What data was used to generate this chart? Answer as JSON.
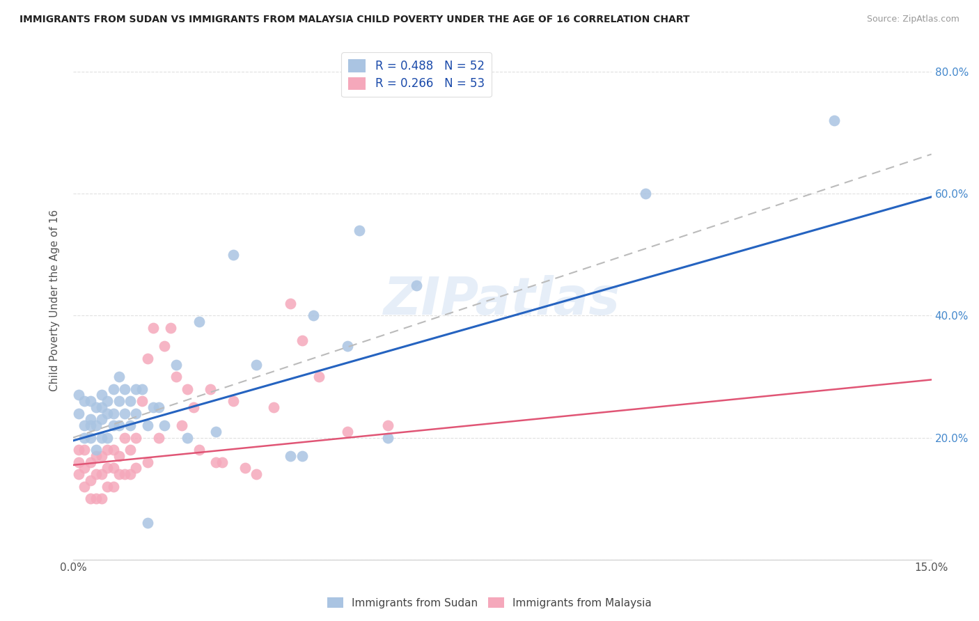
{
  "title": "IMMIGRANTS FROM SUDAN VS IMMIGRANTS FROM MALAYSIA CHILD POVERTY UNDER THE AGE OF 16 CORRELATION CHART",
  "source": "Source: ZipAtlas.com",
  "ylabel": "Child Poverty Under the Age of 16",
  "xlim": [
    0,
    0.15
  ],
  "ylim": [
    0,
    0.85
  ],
  "sudan_R": 0.488,
  "sudan_N": 52,
  "malaysia_R": 0.266,
  "malaysia_N": 53,
  "sudan_color": "#aac4e2",
  "malaysia_color": "#f5a8bb",
  "sudan_line_color": "#2563c0",
  "malaysia_line_color": "#e05575",
  "dashed_line_color": "#bbbbbb",
  "watermark": "ZIPatlas",
  "legend_sudan_label": "R = 0.488   N = 52",
  "legend_malaysia_label": "R = 0.266   N = 53",
  "sudan_line_x0": 0.0,
  "sudan_line_y0": 0.195,
  "sudan_line_x1": 0.15,
  "sudan_line_y1": 0.595,
  "malaysia_line_x0": 0.0,
  "malaysia_line_y0": 0.155,
  "malaysia_line_x1": 0.15,
  "malaysia_line_y1": 0.295,
  "dashed_line_x0": 0.0,
  "dashed_line_y0": 0.2,
  "dashed_line_x1": 0.15,
  "dashed_line_y1": 0.665,
  "sudan_x": [
    0.001,
    0.001,
    0.002,
    0.002,
    0.002,
    0.003,
    0.003,
    0.003,
    0.003,
    0.004,
    0.004,
    0.004,
    0.005,
    0.005,
    0.005,
    0.005,
    0.006,
    0.006,
    0.006,
    0.007,
    0.007,
    0.007,
    0.008,
    0.008,
    0.008,
    0.009,
    0.009,
    0.01,
    0.01,
    0.011,
    0.011,
    0.012,
    0.013,
    0.013,
    0.014,
    0.015,
    0.016,
    0.018,
    0.02,
    0.022,
    0.025,
    0.028,
    0.032,
    0.038,
    0.04,
    0.042,
    0.048,
    0.05,
    0.055,
    0.06,
    0.1,
    0.133
  ],
  "sudan_y": [
    0.27,
    0.24,
    0.22,
    0.26,
    0.2,
    0.2,
    0.23,
    0.26,
    0.22,
    0.18,
    0.22,
    0.25,
    0.2,
    0.23,
    0.25,
    0.27,
    0.2,
    0.24,
    0.26,
    0.22,
    0.24,
    0.28,
    0.22,
    0.26,
    0.3,
    0.24,
    0.28,
    0.22,
    0.26,
    0.24,
    0.28,
    0.28,
    0.06,
    0.22,
    0.25,
    0.25,
    0.22,
    0.32,
    0.2,
    0.39,
    0.21,
    0.5,
    0.32,
    0.17,
    0.17,
    0.4,
    0.35,
    0.54,
    0.2,
    0.45,
    0.6,
    0.72
  ],
  "malaysia_x": [
    0.001,
    0.001,
    0.001,
    0.002,
    0.002,
    0.002,
    0.003,
    0.003,
    0.003,
    0.004,
    0.004,
    0.004,
    0.005,
    0.005,
    0.005,
    0.006,
    0.006,
    0.006,
    0.007,
    0.007,
    0.007,
    0.008,
    0.008,
    0.009,
    0.009,
    0.01,
    0.01,
    0.011,
    0.011,
    0.012,
    0.013,
    0.013,
    0.014,
    0.015,
    0.016,
    0.017,
    0.018,
    0.019,
    0.02,
    0.021,
    0.022,
    0.024,
    0.025,
    0.026,
    0.028,
    0.03,
    0.032,
    0.035,
    0.038,
    0.04,
    0.043,
    0.048,
    0.055
  ],
  "malaysia_y": [
    0.14,
    0.16,
    0.18,
    0.12,
    0.15,
    0.18,
    0.1,
    0.13,
    0.16,
    0.1,
    0.14,
    0.17,
    0.1,
    0.14,
    0.17,
    0.12,
    0.15,
    0.18,
    0.12,
    0.15,
    0.18,
    0.14,
    0.17,
    0.14,
    0.2,
    0.14,
    0.18,
    0.15,
    0.2,
    0.26,
    0.16,
    0.33,
    0.38,
    0.2,
    0.35,
    0.38,
    0.3,
    0.22,
    0.28,
    0.25,
    0.18,
    0.28,
    0.16,
    0.16,
    0.26,
    0.15,
    0.14,
    0.25,
    0.42,
    0.36,
    0.3,
    0.21,
    0.22
  ]
}
